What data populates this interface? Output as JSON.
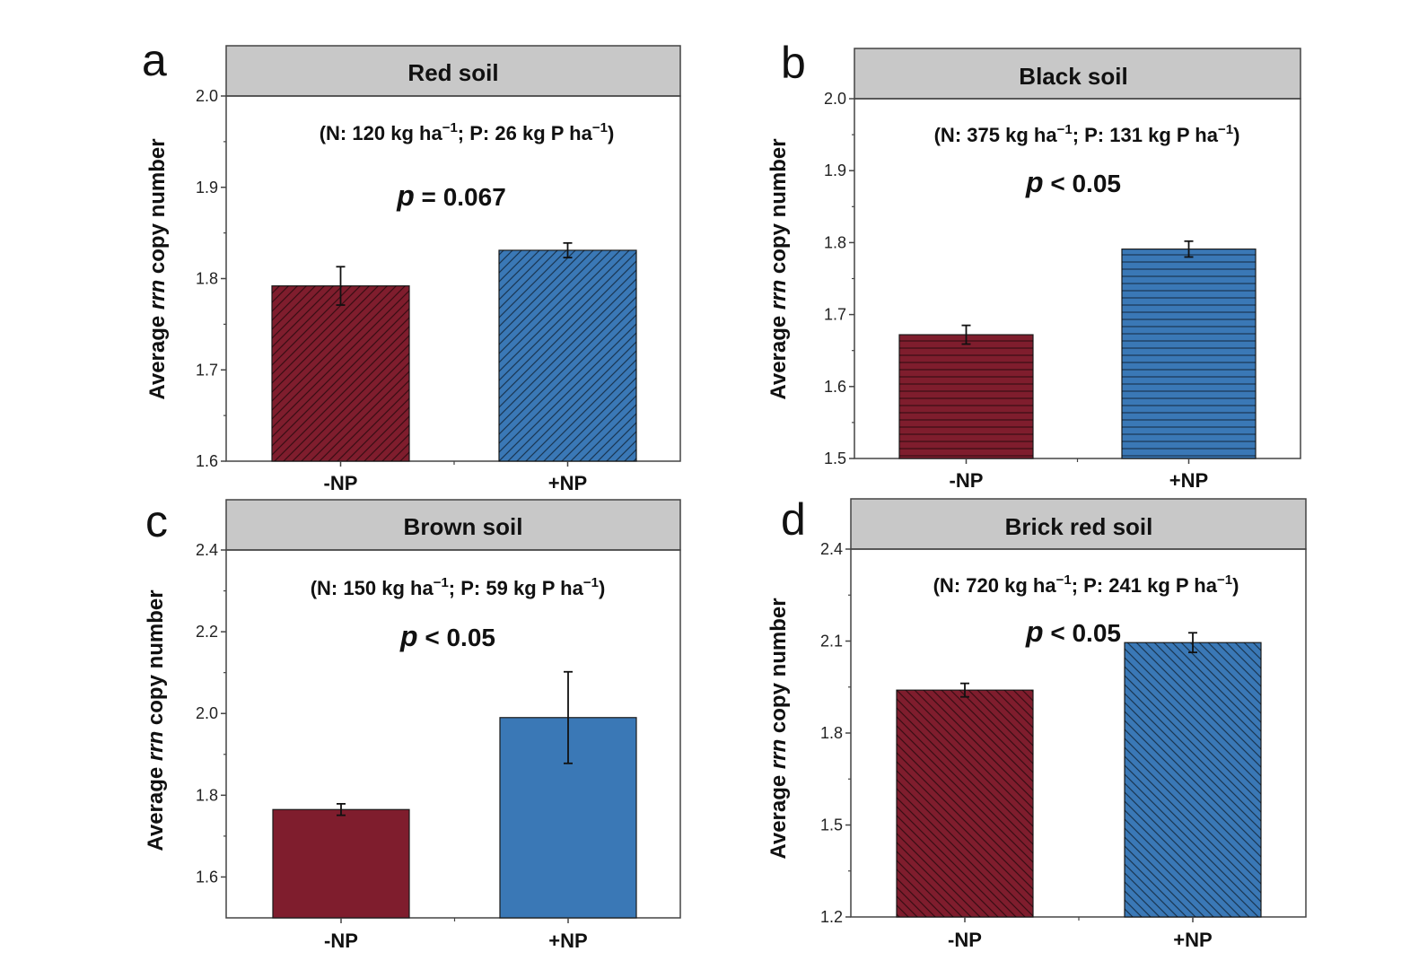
{
  "chart_data": [
    {
      "type": "bar",
      "panel_label": "a",
      "title": "Red soil",
      "fertilization_rate": {
        "n_value": "120",
        "n_unit": "kg ha",
        "p_value": "26",
        "p_unit": "kg P ha",
        "exponent": "−1"
      },
      "p_value": {
        "symbol": "p",
        "text": " = 0.067"
      },
      "ylabel": {
        "pre": "Average ",
        "italic": "rrn",
        "post": " copy number"
      },
      "categories": [
        "-NP",
        "+NP"
      ],
      "values": [
        1.792,
        1.831
      ],
      "errors": [
        0.021,
        0.008
      ],
      "ylim": [
        1.6,
        2.0
      ],
      "yticks": [
        "1.6",
        "1.7",
        "1.8",
        "1.9",
        "2.0"
      ],
      "pattern": "diagonal",
      "colors": [
        "#7f1d2d",
        "#3a78b6"
      ]
    },
    {
      "type": "bar",
      "panel_label": "b",
      "title": "Black soil",
      "fertilization_rate": {
        "n_value": "375",
        "n_unit": "kg ha",
        "p_value": "131",
        "p_unit": "kg P ha",
        "exponent": "−1"
      },
      "p_value": {
        "symbol": "p",
        "text": " < 0.05"
      },
      "ylabel": {
        "pre": "Average ",
        "italic": "rrn",
        "post": " copy number"
      },
      "categories": [
        "-NP",
        "+NP"
      ],
      "values": [
        1.672,
        1.791
      ],
      "errors": [
        0.013,
        0.011
      ],
      "ylim": [
        1.5,
        2.0
      ],
      "yticks": [
        "1.5",
        "1.6",
        "1.7",
        "1.8",
        "1.9",
        "2.0"
      ],
      "pattern": "horizontal",
      "colors": [
        "#7f1d2d",
        "#3a78b6"
      ]
    },
    {
      "type": "bar",
      "panel_label": "c",
      "title": "Brown soil",
      "fertilization_rate": {
        "n_value": "150",
        "n_unit": "kg ha",
        "p_value": "59",
        "p_unit": "kg P ha",
        "exponent": "−1"
      },
      "p_value": {
        "symbol": "p",
        "text": " < 0.05"
      },
      "ylabel": {
        "pre": "Average ",
        "italic": "rrn",
        "post": " copy number"
      },
      "categories": [
        "-NP",
        "+NP"
      ],
      "values": [
        1.765,
        1.99
      ],
      "errors": [
        0.014,
        0.112
      ],
      "ylim": [
        1.5,
        2.4
      ],
      "yticks": [
        "1.6",
        "1.8",
        "2.0",
        "2.2",
        "2.4"
      ],
      "pattern": "none",
      "colors": [
        "#7f1d2d",
        "#3a78b6"
      ]
    },
    {
      "type": "bar",
      "panel_label": "d",
      "title": "Brick red soil",
      "fertilization_rate": {
        "n_value": "720",
        "n_unit": "kg ha",
        "p_value": "241",
        "p_unit": "kg P ha",
        "exponent": "−1"
      },
      "p_value": {
        "symbol": "p",
        "text": " < 0.05"
      },
      "ylabel": {
        "pre": "Average ",
        "italic": "rrn",
        "post": " copy number"
      },
      "categories": [
        "-NP",
        "+NP"
      ],
      "values": [
        1.94,
        2.095
      ],
      "errors": [
        0.022,
        0.032
      ],
      "ylim": [
        1.2,
        2.4
      ],
      "yticks": [
        "1.2",
        "1.5",
        "1.8",
        "2.1",
        "2.4"
      ],
      "pattern": "backdiagonal",
      "colors": [
        "#7f1d2d",
        "#3a78b6"
      ]
    }
  ]
}
